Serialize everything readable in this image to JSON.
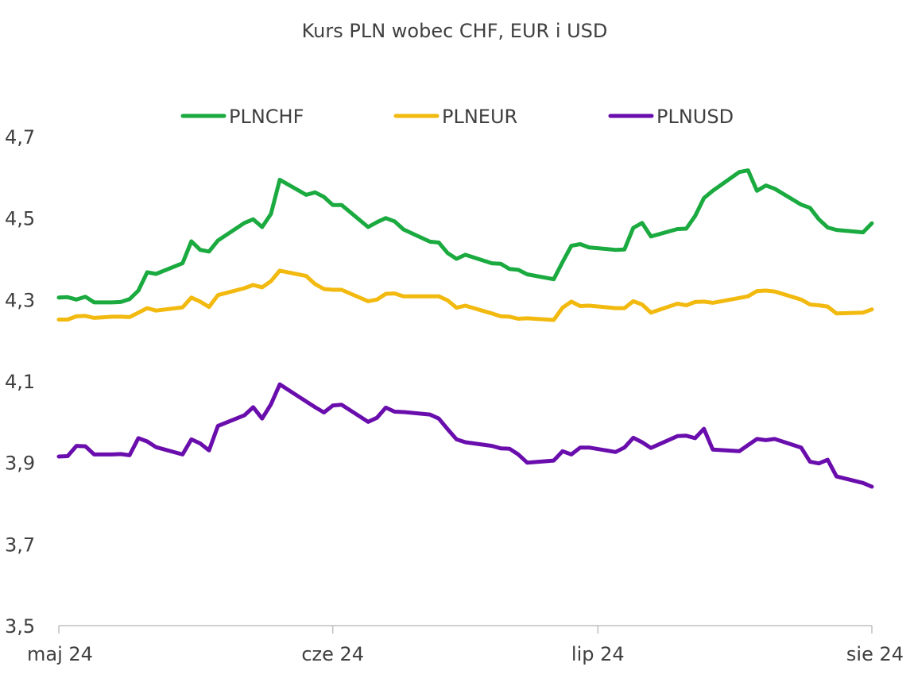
{
  "chart_data": {
    "type": "line",
    "title": "Kurs PLN wobec CHF, EUR i USD",
    "xlabel": "",
    "ylabel": "",
    "ylim": [
      3.5,
      4.7
    ],
    "yticks": [
      "3,5",
      "3,7",
      "3,9",
      "4,1",
      "4,3",
      "4,5",
      "4,7"
    ],
    "ytick_values": [
      3.5,
      3.7,
      3.9,
      4.1,
      4.3,
      4.5,
      4.7
    ],
    "xlim": [
      "2024-05-01",
      "2024-08-01"
    ],
    "xticks": [
      {
        "label": "maj 24",
        "date": "2024-05-01"
      },
      {
        "label": "cze 24",
        "date": "2024-06-01"
      },
      {
        "label": "lip 24",
        "date": "2024-07-01"
      },
      {
        "label": "sie 24",
        "date": "2024-08-01"
      }
    ],
    "grid": false,
    "legend_position": "top-center",
    "series": [
      {
        "name": "PLNCHF",
        "color": "#1aaa3f",
        "points": [
          [
            "2024-05-01",
            4.305
          ],
          [
            "2024-05-02",
            4.306
          ],
          [
            "2024-05-03",
            4.3
          ],
          [
            "2024-05-04",
            4.307
          ],
          [
            "2024-05-05",
            4.293
          ],
          [
            "2024-05-07",
            4.293
          ],
          [
            "2024-05-08",
            4.294
          ],
          [
            "2024-05-09",
            4.301
          ],
          [
            "2024-05-10",
            4.322
          ],
          [
            "2024-05-11",
            4.367
          ],
          [
            "2024-05-12",
            4.363
          ],
          [
            "2024-05-15",
            4.389
          ],
          [
            "2024-05-16",
            4.443
          ],
          [
            "2024-05-17",
            4.422
          ],
          [
            "2024-05-18",
            4.418
          ],
          [
            "2024-05-19",
            4.445
          ],
          [
            "2024-05-22",
            4.488
          ],
          [
            "2024-05-23",
            4.497
          ],
          [
            "2024-05-24",
            4.478
          ],
          [
            "2024-05-25",
            4.51
          ],
          [
            "2024-05-26",
            4.594
          ],
          [
            "2024-05-29",
            4.557
          ],
          [
            "2024-05-30",
            4.563
          ],
          [
            "2024-05-31",
            4.552
          ],
          [
            "2024-06-01",
            4.532
          ],
          [
            "2024-06-02",
            4.532
          ],
          [
            "2024-06-05",
            4.478
          ],
          [
            "2024-06-06",
            4.49
          ],
          [
            "2024-06-07",
            4.5
          ],
          [
            "2024-06-08",
            4.492
          ],
          [
            "2024-06-09",
            4.472
          ],
          [
            "2024-06-12",
            4.442
          ],
          [
            "2024-06-13",
            4.44
          ],
          [
            "2024-06-14",
            4.414
          ],
          [
            "2024-06-15",
            4.4
          ],
          [
            "2024-06-16",
            4.41
          ],
          [
            "2024-06-19",
            4.389
          ],
          [
            "2024-06-20",
            4.388
          ],
          [
            "2024-06-21",
            4.375
          ],
          [
            "2024-06-22",
            4.373
          ],
          [
            "2024-06-23",
            4.362
          ],
          [
            "2024-06-26",
            4.35
          ],
          [
            "2024-06-27",
            4.392
          ],
          [
            "2024-06-28",
            4.432
          ],
          [
            "2024-06-29",
            4.436
          ],
          [
            "2024-06-30",
            4.428
          ],
          [
            "2024-07-03",
            4.422
          ],
          [
            "2024-07-04",
            4.423
          ],
          [
            "2024-07-05",
            4.476
          ],
          [
            "2024-07-06",
            4.488
          ],
          [
            "2024-07-07",
            4.455
          ],
          [
            "2024-07-10",
            4.473
          ],
          [
            "2024-07-11",
            4.474
          ],
          [
            "2024-07-12",
            4.505
          ],
          [
            "2024-07-13",
            4.549
          ],
          [
            "2024-07-14",
            4.567
          ],
          [
            "2024-07-17",
            4.613
          ],
          [
            "2024-07-18",
            4.617
          ],
          [
            "2024-07-19",
            4.567
          ],
          [
            "2024-07-20",
            4.58
          ],
          [
            "2024-07-21",
            4.572
          ],
          [
            "2024-07-24",
            4.533
          ],
          [
            "2024-07-25",
            4.525
          ],
          [
            "2024-07-26",
            4.497
          ],
          [
            "2024-07-27",
            4.477
          ],
          [
            "2024-07-28",
            4.471
          ],
          [
            "2024-07-31",
            4.465
          ],
          [
            "2024-08-01",
            4.487
          ]
        ]
      },
      {
        "name": "PLNEUR",
        "color": "#f2b90f",
        "points": [
          [
            "2024-05-01",
            4.251
          ],
          [
            "2024-05-02",
            4.251
          ],
          [
            "2024-05-03",
            4.259
          ],
          [
            "2024-05-04",
            4.26
          ],
          [
            "2024-05-05",
            4.255
          ],
          [
            "2024-05-07",
            4.258
          ],
          [
            "2024-05-08",
            4.258
          ],
          [
            "2024-05-09",
            4.257
          ],
          [
            "2024-05-10",
            4.268
          ],
          [
            "2024-05-11",
            4.279
          ],
          [
            "2024-05-12",
            4.273
          ],
          [
            "2024-05-15",
            4.281
          ],
          [
            "2024-05-16",
            4.305
          ],
          [
            "2024-05-17",
            4.295
          ],
          [
            "2024-05-18",
            4.282
          ],
          [
            "2024-05-19",
            4.311
          ],
          [
            "2024-05-22",
            4.328
          ],
          [
            "2024-05-23",
            4.336
          ],
          [
            "2024-05-24",
            4.33
          ],
          [
            "2024-05-25",
            4.345
          ],
          [
            "2024-05-26",
            4.371
          ],
          [
            "2024-05-29",
            4.358
          ],
          [
            "2024-05-30",
            4.338
          ],
          [
            "2024-05-31",
            4.326
          ],
          [
            "2024-06-01",
            4.324
          ],
          [
            "2024-06-02",
            4.324
          ],
          [
            "2024-06-05",
            4.296
          ],
          [
            "2024-06-06",
            4.3
          ],
          [
            "2024-06-07",
            4.314
          ],
          [
            "2024-06-08",
            4.315
          ],
          [
            "2024-06-09",
            4.308
          ],
          [
            "2024-06-12",
            4.308
          ],
          [
            "2024-06-13",
            4.308
          ],
          [
            "2024-06-14",
            4.298
          ],
          [
            "2024-06-15",
            4.28
          ],
          [
            "2024-06-16",
            4.285
          ],
          [
            "2024-06-19",
            4.266
          ],
          [
            "2024-06-20",
            4.259
          ],
          [
            "2024-06-21",
            4.258
          ],
          [
            "2024-06-22",
            4.253
          ],
          [
            "2024-06-23",
            4.254
          ],
          [
            "2024-06-26",
            4.25
          ],
          [
            "2024-06-27",
            4.28
          ],
          [
            "2024-06-28",
            4.295
          ],
          [
            "2024-06-29",
            4.284
          ],
          [
            "2024-06-30",
            4.285
          ],
          [
            "2024-07-03",
            4.279
          ],
          [
            "2024-07-04",
            4.279
          ],
          [
            "2024-07-05",
            4.296
          ],
          [
            "2024-07-06",
            4.288
          ],
          [
            "2024-07-07",
            4.268
          ],
          [
            "2024-07-10",
            4.29
          ],
          [
            "2024-07-11",
            4.286
          ],
          [
            "2024-07-12",
            4.294
          ],
          [
            "2024-07-13",
            4.295
          ],
          [
            "2024-07-14",
            4.292
          ],
          [
            "2024-07-17",
            4.304
          ],
          [
            "2024-07-18",
            4.308
          ],
          [
            "2024-07-19",
            4.321
          ],
          [
            "2024-07-20",
            4.322
          ],
          [
            "2024-07-21",
            4.32
          ],
          [
            "2024-07-24",
            4.3
          ],
          [
            "2024-07-25",
            4.288
          ],
          [
            "2024-07-26",
            4.286
          ],
          [
            "2024-07-27",
            4.283
          ],
          [
            "2024-07-28",
            4.266
          ],
          [
            "2024-07-31",
            4.268
          ],
          [
            "2024-08-01",
            4.276
          ]
        ]
      },
      {
        "name": "PLNUSD",
        "color": "#6a0dad",
        "points": [
          [
            "2024-05-01",
            3.915
          ],
          [
            "2024-05-02",
            3.916
          ],
          [
            "2024-05-03",
            3.941
          ],
          [
            "2024-05-04",
            3.94
          ],
          [
            "2024-05-05",
            3.92
          ],
          [
            "2024-05-07",
            3.92
          ],
          [
            "2024-05-08",
            3.921
          ],
          [
            "2024-05-09",
            3.918
          ],
          [
            "2024-05-10",
            3.96
          ],
          [
            "2024-05-11",
            3.952
          ],
          [
            "2024-05-12",
            3.938
          ],
          [
            "2024-05-15",
            3.92
          ],
          [
            "2024-05-16",
            3.957
          ],
          [
            "2024-05-17",
            3.947
          ],
          [
            "2024-05-18",
            3.93
          ],
          [
            "2024-05-19",
            3.99
          ],
          [
            "2024-05-22",
            4.016
          ],
          [
            "2024-05-23",
            4.036
          ],
          [
            "2024-05-24",
            4.008
          ],
          [
            "2024-05-25",
            4.043
          ],
          [
            "2024-05-26",
            4.092
          ],
          [
            "2024-05-29",
            4.05
          ],
          [
            "2024-05-30",
            4.036
          ],
          [
            "2024-05-31",
            4.023
          ],
          [
            "2024-06-01",
            4.04
          ],
          [
            "2024-06-02",
            4.042
          ],
          [
            "2024-06-05",
            4.0
          ],
          [
            "2024-06-06",
            4.01
          ],
          [
            "2024-06-07",
            4.035
          ],
          [
            "2024-06-08",
            4.025
          ],
          [
            "2024-06-09",
            4.024
          ],
          [
            "2024-06-12",
            4.018
          ],
          [
            "2024-06-13",
            4.008
          ],
          [
            "2024-06-14",
            3.982
          ],
          [
            "2024-06-15",
            3.957
          ],
          [
            "2024-06-16",
            3.95
          ],
          [
            "2024-06-19",
            3.941
          ],
          [
            "2024-06-20",
            3.935
          ],
          [
            "2024-06-21",
            3.934
          ],
          [
            "2024-06-22",
            3.92
          ],
          [
            "2024-06-23",
            3.9
          ],
          [
            "2024-06-26",
            3.905
          ],
          [
            "2024-06-27",
            3.928
          ],
          [
            "2024-06-28",
            3.92
          ],
          [
            "2024-06-29",
            3.937
          ],
          [
            "2024-06-30",
            3.937
          ],
          [
            "2024-07-03",
            3.926
          ],
          [
            "2024-07-04",
            3.937
          ],
          [
            "2024-07-05",
            3.961
          ],
          [
            "2024-07-06",
            3.95
          ],
          [
            "2024-07-07",
            3.936
          ],
          [
            "2024-07-10",
            3.965
          ],
          [
            "2024-07-11",
            3.966
          ],
          [
            "2024-07-12",
            3.96
          ],
          [
            "2024-07-13",
            3.983
          ],
          [
            "2024-07-14",
            3.932
          ],
          [
            "2024-07-17",
            3.928
          ],
          [
            "2024-07-18",
            3.943
          ],
          [
            "2024-07-19",
            3.958
          ],
          [
            "2024-07-20",
            3.955
          ],
          [
            "2024-07-21",
            3.958
          ],
          [
            "2024-07-24",
            3.937
          ],
          [
            "2024-07-25",
            3.902
          ],
          [
            "2024-07-26",
            3.898
          ],
          [
            "2024-07-27",
            3.907
          ],
          [
            "2024-07-28",
            3.866
          ],
          [
            "2024-07-31",
            3.85
          ],
          [
            "2024-08-01",
            3.841
          ]
        ]
      }
    ]
  }
}
